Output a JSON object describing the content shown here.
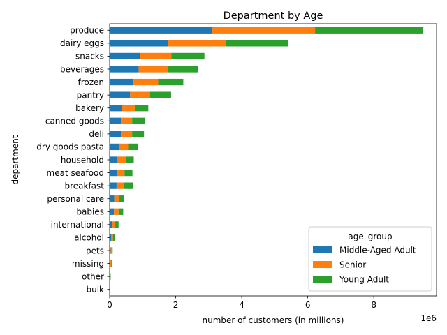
{
  "chart_data": {
    "type": "bar",
    "orientation": "horizontal",
    "stacked": true,
    "title": "Department by Age",
    "xlabel": "number of customers (in millions)",
    "ylabel": "department",
    "x_offset_text": "1e6",
    "xlim": [
      0,
      9.9
    ],
    "x_ticks": [
      0,
      2,
      4,
      6,
      8
    ],
    "grid": false,
    "legend": {
      "title": "age_group",
      "placement": "lower-right"
    },
    "categories": [
      "produce",
      "dairy eggs",
      "snacks",
      "beverages",
      "frozen",
      "pantry",
      "bakery",
      "canned goods",
      "deli",
      "dry goods pasta",
      "household",
      "meat seafood",
      "breakfast",
      "personal care",
      "babies",
      "international",
      "alcohol",
      "pets",
      "missing",
      "other",
      "bulk"
    ],
    "series": [
      {
        "name": "Middle-Aged Adult",
        "color": "#1f77b4",
        "values": [
          3.1,
          1.76,
          0.93,
          0.88,
          0.72,
          0.62,
          0.38,
          0.34,
          0.34,
          0.28,
          0.24,
          0.22,
          0.21,
          0.14,
          0.13,
          0.08,
          0.05,
          0.03,
          0.02,
          0.01,
          0.005
        ]
      },
      {
        "name": "Senior",
        "color": "#ff7f0e",
        "values": [
          3.12,
          1.77,
          0.94,
          0.88,
          0.75,
          0.6,
          0.38,
          0.34,
          0.34,
          0.28,
          0.24,
          0.23,
          0.22,
          0.14,
          0.14,
          0.09,
          0.05,
          0.03,
          0.02,
          0.01,
          0.005
        ]
      },
      {
        "name": "Young Adult",
        "color": "#2ca02c",
        "values": [
          3.28,
          1.87,
          1.0,
          0.92,
          0.76,
          0.64,
          0.41,
          0.38,
          0.36,
          0.3,
          0.25,
          0.24,
          0.27,
          0.15,
          0.14,
          0.1,
          0.05,
          0.03,
          0.02,
          0.01,
          0.005
        ]
      }
    ]
  }
}
